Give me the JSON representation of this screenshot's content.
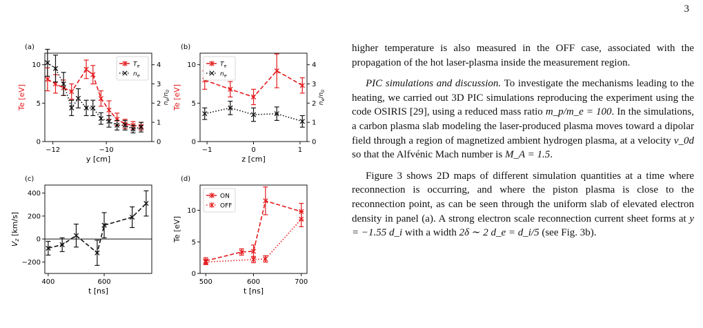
{
  "page": {
    "number": "3"
  },
  "colors": {
    "te": "#e41a1c",
    "ne": "#111111"
  },
  "chart_data": [
    {
      "id": "a",
      "panel_label": "(a)",
      "type": "line",
      "xlabel": "y [cm]",
      "ylabel": "Te [eV]",
      "ylabel_right": "n_e/n_0",
      "xlim": [
        -12.3,
        -8.3
      ],
      "ylim": [
        0,
        11.5
      ],
      "ylim_right": [
        0,
        4.6
      ],
      "xticks": [
        -12,
        -10
      ],
      "xtick_labels": [
        "−12",
        "−10"
      ],
      "yticks": [
        0,
        5,
        10
      ],
      "yticks_right": [
        0,
        1,
        2,
        3,
        4
      ],
      "legend_placement": "top-right",
      "series": [
        {
          "name": "T_e",
          "axis": "left",
          "color": "#e41a1c",
          "linestyle": "dashed",
          "x": [
            -12.2,
            -11.9,
            -11.6,
            -11.3,
            -10.75,
            -10.5,
            -10.2,
            -9.9,
            -9.6,
            -9.3,
            -9.0,
            -8.7
          ],
          "y": [
            8.1,
            7.5,
            7.0,
            6.5,
            9.4,
            8.7,
            5.6,
            4.1,
            2.9,
            2.3,
            2.1,
            2.0
          ],
          "err": [
            1.5,
            1.2,
            1.0,
            1.0,
            1.2,
            1.2,
            1.0,
            1.2,
            0.8,
            0.6,
            0.5,
            0.5
          ]
        },
        {
          "name": "n_e",
          "axis": "right",
          "color": "#111111",
          "linestyle": "dotted",
          "x": [
            -12.2,
            -11.9,
            -11.6,
            -11.3,
            -11.05,
            -10.75,
            -10.5,
            -10.2,
            -9.9,
            -9.6,
            -9.3,
            -9.0,
            -8.7
          ],
          "y": [
            4.1,
            3.8,
            3.0,
            1.75,
            2.25,
            1.75,
            1.75,
            1.2,
            1.05,
            0.85,
            0.85,
            0.65,
            0.75
          ],
          "err": [
            0.7,
            0.7,
            0.6,
            0.4,
            0.5,
            0.4,
            0.4,
            0.3,
            0.3,
            0.25,
            0.25,
            0.2,
            0.25
          ]
        }
      ]
    },
    {
      "id": "b",
      "panel_label": "(b)",
      "type": "line",
      "xlabel": "z [cm]",
      "ylabel": "Te [eV]",
      "ylabel_right": "n_e/n_0",
      "xlim": [
        -1.15,
        1.15
      ],
      "ylim": [
        0,
        11.5
      ],
      "ylim_right": [
        0,
        4.6
      ],
      "xticks": [
        -1,
        0,
        1
      ],
      "xtick_labels": [
        "−1",
        "0",
        "1"
      ],
      "yticks": [
        0,
        5,
        10
      ],
      "yticks_right": [
        0,
        1,
        2,
        3,
        4
      ],
      "legend_placement": "top-left",
      "series": [
        {
          "name": "T_e",
          "axis": "left",
          "color": "#e41a1c",
          "linestyle": "dashed",
          "x": [
            -1.05,
            -0.5,
            0.0,
            0.5,
            1.05
          ],
          "y": [
            8.0,
            6.8,
            5.8,
            9.2,
            7.3
          ],
          "err": [
            1.2,
            1.0,
            1.0,
            2.2,
            1.0
          ]
        },
        {
          "name": "n_e",
          "axis": "right",
          "color": "#111111",
          "linestyle": "dotted",
          "x": [
            -1.05,
            -0.5,
            0.0,
            0.5,
            1.05
          ],
          "y": [
            1.45,
            1.75,
            1.4,
            1.45,
            1.05
          ],
          "err": [
            0.3,
            0.35,
            0.35,
            0.35,
            0.3
          ]
        }
      ]
    },
    {
      "id": "c",
      "panel_label": "(c)",
      "type": "line",
      "xlabel": "t [ns]",
      "ylabel": "V_z [km/s]",
      "xlim": [
        388,
        770
      ],
      "ylim": [
        -300,
        470
      ],
      "xticks": [
        400,
        600
      ],
      "xtick_labels": [
        "400",
        "600"
      ],
      "yticks": [
        -200,
        0,
        200,
        400
      ],
      "yticks_labels": [
        "−200",
        "0",
        "200",
        "400"
      ],
      "series": [
        {
          "name": "",
          "axis": "left",
          "color": "#111111",
          "linestyle": "dashed",
          "x": [
            400,
            450,
            500,
            575,
            600,
            700,
            750
          ],
          "y": [
            -80,
            -50,
            30,
            -120,
            120,
            190,
            310
          ],
          "err": [
            60,
            60,
            100,
            110,
            110,
            90,
            110
          ]
        }
      ]
    },
    {
      "id": "d",
      "panel_label": "(d)",
      "type": "line",
      "xlabel": "t [ns]",
      "ylabel": "Te [eV]",
      "xlim": [
        488,
        712
      ],
      "ylim": [
        0,
        14
      ],
      "xticks": [
        500,
        600,
        700
      ],
      "xtick_labels": [
        "500",
        "600",
        "700"
      ],
      "yticks": [
        0,
        5,
        10
      ],
      "legend_placement": "top-left",
      "series": [
        {
          "name": "ON",
          "axis": "left",
          "color": "#e41a1c",
          "linestyle": "dashed",
          "x": [
            500,
            575,
            600,
            625,
            700
          ],
          "y": [
            2.0,
            3.4,
            3.5,
            11.5,
            9.8
          ],
          "err": [
            0.5,
            0.5,
            1.0,
            2.2,
            1.3
          ]
        },
        {
          "name": "OFF",
          "axis": "left",
          "color": "#e41a1c",
          "linestyle": "dotted",
          "x": [
            500,
            600,
            625,
            700
          ],
          "y": [
            1.8,
            2.2,
            2.3,
            8.6
          ],
          "err": [
            0.4,
            0.5,
            0.5,
            1.2
          ]
        }
      ]
    }
  ],
  "text": {
    "p1": "higher temperature is also measured in the OFF case, associated with the propagation of the hot laser-plasma inside the measurement region.",
    "p2_heading": "PIC simulations and discussion.",
    "p2_a": " To investigate the mechanisms leading to the heating, we carried out 3D PIC simulations reproducing the experiment using the code OSIRIS [29], using a reduced mass ratio ",
    "p2_m1": "m_p/m_e = 100",
    "p2_b": ". In the simulations, a carbon plasma slab modeling the laser-produced plasma moves toward a dipolar field through a region of magnetized ambient hydrogen plasma, at a velocity ",
    "p2_m2": "v_0d",
    "p2_c": " so that the Alfvénic Mach number is ",
    "p2_m3": "M_A = 1.5",
    "p2_d": ".",
    "p3_a": "Figure 3 shows 2D maps of different simulation quantities at a time where reconnection is occurring, and where the piston plasma is close to the reconnection point, as can be seen through the uniform slab of elevated electron density in panel (a). A strong electron scale reconnection current sheet forms at ",
    "p3_m1": "y = −1.55 d_i",
    "p3_b": " with a width ",
    "p3_m2": "2δ ∼ 2 d_e = d_i/5",
    "p3_c": " (see Fig. 3b)."
  }
}
